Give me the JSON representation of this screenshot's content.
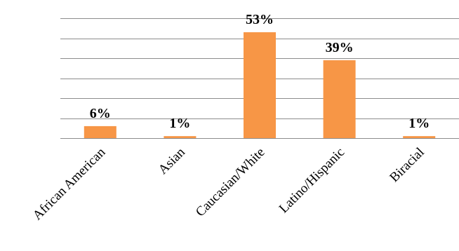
{
  "chart_data": {
    "type": "bar",
    "categories": [
      "African American",
      "Asian",
      "Caucasian/White",
      "Latino/Hispanic",
      "Biracial"
    ],
    "values": [
      6,
      1,
      53,
      39,
      1
    ],
    "data_labels": [
      "6%",
      "1%",
      "53%",
      "39%",
      "1%"
    ],
    "title": "",
    "xlabel": "",
    "ylabel": "",
    "ylim": [
      0,
      70
    ],
    "grid": true,
    "legend": "none",
    "colors": {
      "bar": "#f79646",
      "grid": "#8c8c8c"
    }
  }
}
